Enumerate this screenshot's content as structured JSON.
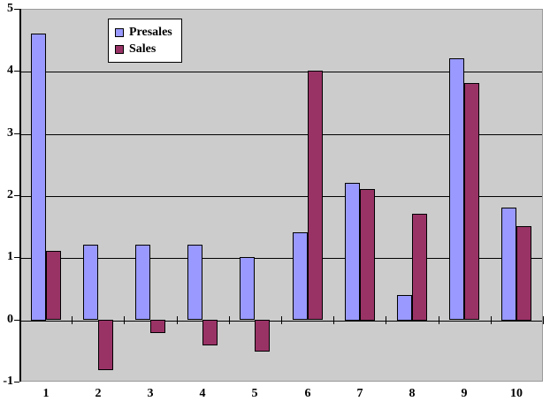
{
  "chart_data": {
    "type": "bar",
    "title": "",
    "categories": [
      "1",
      "2",
      "3",
      "4",
      "5",
      "6",
      "7",
      "8",
      "9",
      "10"
    ],
    "series": [
      {
        "name": "Presales",
        "color": "#9999FF",
        "values": [
          4.6,
          1.2,
          1.2,
          1.2,
          1.0,
          1.4,
          2.2,
          0.4,
          4.2,
          1.8
        ]
      },
      {
        "name": "Sales",
        "color": "#993366",
        "values": [
          1.1,
          -0.8,
          -0.2,
          -0.4,
          -0.5,
          4.0,
          2.1,
          1.7,
          3.8,
          1.5
        ]
      }
    ],
    "xlabel": "",
    "ylabel": "",
    "ylim": [
      -1,
      5
    ],
    "yticks": [
      5,
      4,
      3,
      2,
      1,
      0,
      -1
    ],
    "ytick_labels": [
      "5",
      "4",
      "3",
      "2",
      "1",
      "0",
      "-1"
    ],
    "grid": true,
    "legend_position": "inside-top-left",
    "colors": {
      "plot_background": "#CCCCCC",
      "outer_background": "#FFFFFF",
      "gridline": "#000000",
      "plot_border": "#999999",
      "axis": "#000000",
      "label_text": "#000000",
      "legend_background": "#FFFFFF",
      "legend_border": "#000000"
    }
  }
}
